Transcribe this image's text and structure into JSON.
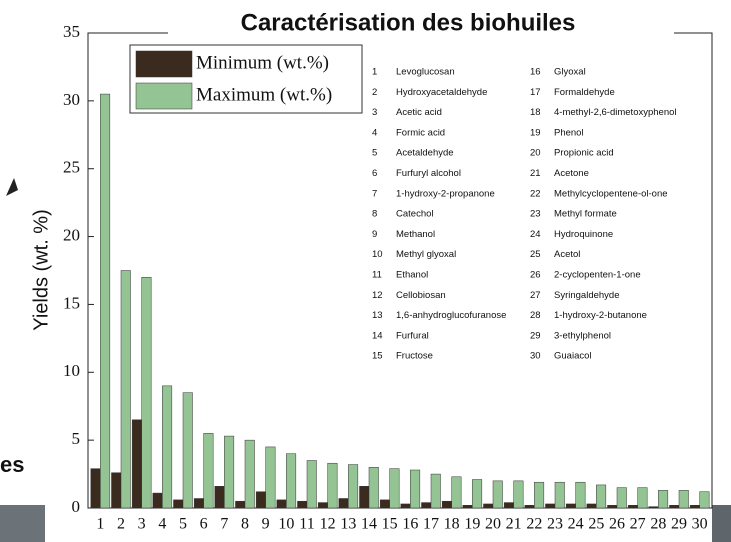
{
  "chart_data": {
    "type": "bar",
    "title": "Caractérisation  des biohuiles",
    "y_label": "Yields (wt. %)",
    "categories": [
      1,
      2,
      3,
      4,
      5,
      6,
      7,
      8,
      9,
      10,
      11,
      12,
      13,
      14,
      15,
      16,
      17,
      18,
      19,
      20,
      21,
      22,
      23,
      24,
      25,
      26,
      27,
      28,
      29,
      30
    ],
    "series": [
      {
        "name": "Minimum (wt.%)",
        "color": "#3b2a1e",
        "values": [
          2.9,
          2.6,
          6.5,
          1.1,
          0.6,
          0.7,
          1.6,
          0.5,
          1.2,
          0.6,
          0.5,
          0.4,
          0.7,
          1.6,
          0.6,
          0.3,
          0.4,
          0.5,
          0.2,
          0.3,
          0.4,
          0.2,
          0.3,
          0.3,
          0.3,
          0.2,
          0.2,
          0.1,
          0.2,
          0.2
        ]
      },
      {
        "name": "Maximum (wt.%)",
        "color": "#94c493",
        "values": [
          30.5,
          17.5,
          17.0,
          9.0,
          8.5,
          5.5,
          5.3,
          5.0,
          4.5,
          4.0,
          3.5,
          3.3,
          3.2,
          3.0,
          2.9,
          2.8,
          2.5,
          2.3,
          2.1,
          2.0,
          2.0,
          1.9,
          1.9,
          1.9,
          1.7,
          1.5,
          1.5,
          1.3,
          1.3,
          1.2
        ]
      }
    ],
    "ylim": [
      0,
      35
    ],
    "yticks": [
      0,
      5,
      10,
      15,
      20,
      25,
      30,
      35
    ],
    "legend": "upper left",
    "compound_list": [
      {
        "number": 1,
        "name": "Levoglucosan"
      },
      {
        "number": 2,
        "name": "Hydroxyacetaldehyde"
      },
      {
        "number": 3,
        "name": "Acetic acid"
      },
      {
        "number": 4,
        "name": "Formic acid"
      },
      {
        "number": 5,
        "name": "Acetaldehyde"
      },
      {
        "number": 6,
        "name": "Furfuryl alcohol"
      },
      {
        "number": 7,
        "name": "1-hydroxy-2-propanone"
      },
      {
        "number": 8,
        "name": "Catechol"
      },
      {
        "number": 9,
        "name": "Methanol"
      },
      {
        "number": 10,
        "name": "Methyl glyoxal"
      },
      {
        "number": 11,
        "name": "Ethanol"
      },
      {
        "number": 12,
        "name": "Cellobiosan"
      },
      {
        "number": 13,
        "name": "1,6-anhydroglucofuranose"
      },
      {
        "number": 14,
        "name": "Furfural"
      },
      {
        "number": 15,
        "name": "Fructose"
      },
      {
        "number": 16,
        "name": "Glyoxal"
      },
      {
        "number": 17,
        "name": "Formaldehyde"
      },
      {
        "number": 18,
        "name": "4-methyl-2,6-dimetoxyphenol"
      },
      {
        "number": 19,
        "name": "Phenol"
      },
      {
        "number": 20,
        "name": "Propionic acid"
      },
      {
        "number": 21,
        "name": "Acetone"
      },
      {
        "number": 22,
        "name": "Methylcyclopentene-ol-one"
      },
      {
        "number": 23,
        "name": "Methyl formate"
      },
      {
        "number": 24,
        "name": "Hydroquinone"
      },
      {
        "number": 25,
        "name": "Acetol"
      },
      {
        "number": 26,
        "name": "2-cyclopenten-1-one"
      },
      {
        "number": 27,
        "name": "Syringaldehyde"
      },
      {
        "number": 28,
        "name": "1-hydroxy-2-butanone"
      },
      {
        "number": 29,
        "name": "3-ethylphenol"
      },
      {
        "number": 30,
        "name": "Guaiacol"
      }
    ]
  },
  "side_text": "es"
}
